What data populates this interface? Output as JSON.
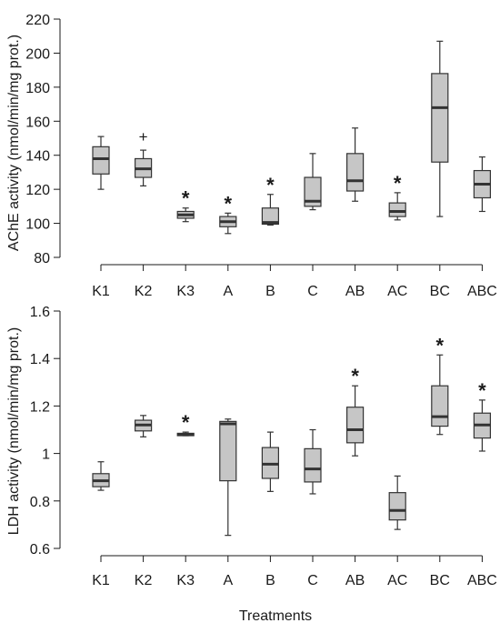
{
  "chart_data": [
    {
      "type": "box",
      "ylabel": "AChE activity (nmol/min/mg prot.)",
      "xlabel": "",
      "ylim": [
        80,
        220
      ],
      "yticks": [
        80,
        100,
        120,
        140,
        160,
        180,
        200,
        220
      ],
      "ytick_labels": [
        "80",
        "100",
        "120",
        "140",
        "160",
        "180",
        "200",
        "220"
      ],
      "categories": [
        "K1",
        "K2",
        "K3",
        "A",
        "B",
        "C",
        "AB",
        "AC",
        "BC",
        "ABC"
      ],
      "boxes": [
        {
          "category": "K1",
          "min": 120,
          "q1": 129,
          "median": 138,
          "q3": 145,
          "max": 151,
          "marker": ""
        },
        {
          "category": "K2",
          "min": 122,
          "q1": 127,
          "median": 132,
          "q3": 138,
          "max": 143,
          "marker": "",
          "outlier": 151,
          "outlier_symbol": "+"
        },
        {
          "category": "K3",
          "min": 101,
          "q1": 103,
          "median": 105,
          "q3": 107,
          "max": 109,
          "marker": "*"
        },
        {
          "category": "A",
          "min": 94,
          "q1": 98,
          "median": 101,
          "q3": 104,
          "max": 106,
          "marker": "*"
        },
        {
          "category": "B",
          "min": 99,
          "q1": 99.5,
          "median": 100.5,
          "q3": 109,
          "max": 117,
          "marker": "*"
        },
        {
          "category": "C",
          "min": 108,
          "q1": 110,
          "median": 113,
          "q3": 127,
          "max": 141,
          "marker": ""
        },
        {
          "category": "AB",
          "min": 113,
          "q1": 119,
          "median": 125,
          "q3": 141,
          "max": 156,
          "marker": ""
        },
        {
          "category": "AC",
          "min": 102,
          "q1": 104,
          "median": 107,
          "q3": 112,
          "max": 118,
          "marker": "*"
        },
        {
          "category": "BC",
          "min": 104,
          "q1": 136,
          "median": 168,
          "q3": 188,
          "max": 207,
          "marker": ""
        },
        {
          "category": "ABC",
          "min": 107,
          "q1": 115,
          "median": 123,
          "q3": 131,
          "max": 139,
          "marker": ""
        }
      ],
      "grid": false
    },
    {
      "type": "box",
      "ylabel": "LDH activity (nmol/min/mg prot.)",
      "xlabel": "Treatments",
      "ylim": [
        0.6,
        1.6
      ],
      "yticks": [
        0.6,
        0.8,
        1.0,
        1.2,
        1.4,
        1.6
      ],
      "ytick_labels": [
        "0.6",
        "0.8",
        "1",
        "1.2",
        "1.4",
        "1.6"
      ],
      "categories": [
        "K1",
        "K2",
        "K3",
        "A",
        "B",
        "C",
        "AB",
        "AC",
        "BC",
        "ABC"
      ],
      "boxes": [
        {
          "category": "K1",
          "min": 0.845,
          "q1": 0.86,
          "median": 0.885,
          "q3": 0.915,
          "max": 0.965,
          "marker": ""
        },
        {
          "category": "K2",
          "min": 1.07,
          "q1": 1.095,
          "median": 1.12,
          "q3": 1.14,
          "max": 1.16,
          "marker": ""
        },
        {
          "category": "K3",
          "min": 1.075,
          "q1": 1.075,
          "median": 1.08,
          "q3": 1.085,
          "max": 1.09,
          "marker": "*"
        },
        {
          "category": "A",
          "min": 0.655,
          "q1": 0.885,
          "median": 1.125,
          "q3": 1.135,
          "max": 1.145,
          "marker": ""
        },
        {
          "category": "B",
          "min": 0.84,
          "q1": 0.895,
          "median": 0.955,
          "q3": 1.025,
          "max": 1.09,
          "marker": ""
        },
        {
          "category": "C",
          "min": 0.83,
          "q1": 0.88,
          "median": 0.935,
          "q3": 1.02,
          "max": 1.1,
          "marker": ""
        },
        {
          "category": "AB",
          "min": 0.99,
          "q1": 1.045,
          "median": 1.1,
          "q3": 1.195,
          "max": 1.285,
          "marker": "*"
        },
        {
          "category": "AC",
          "min": 0.68,
          "q1": 0.72,
          "median": 0.76,
          "q3": 0.835,
          "max": 0.905,
          "marker": ""
        },
        {
          "category": "BC",
          "min": 1.08,
          "q1": 1.115,
          "median": 1.155,
          "q3": 1.285,
          "max": 1.415,
          "marker": "*"
        },
        {
          "category": "ABC",
          "min": 1.01,
          "q1": 1.065,
          "median": 1.12,
          "q3": 1.17,
          "max": 1.225,
          "marker": "*"
        }
      ],
      "grid": false
    }
  ],
  "colors": {
    "box_fill": "#c6c6c6",
    "box_stroke": "#333333",
    "axis": "#1a1a1a",
    "background": "#ffffff"
  }
}
